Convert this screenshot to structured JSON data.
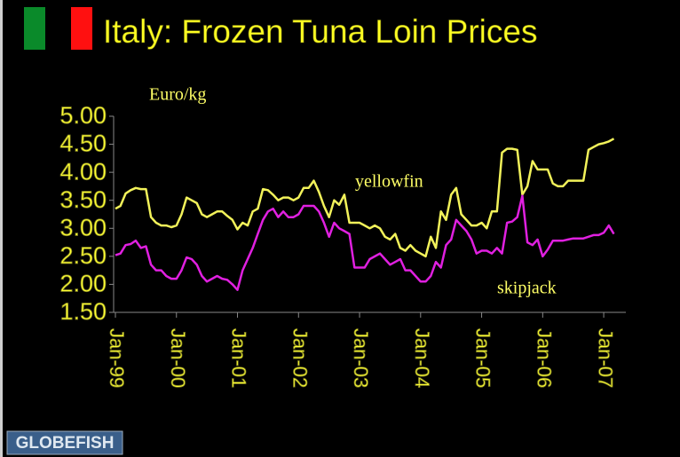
{
  "chart_data": {
    "type": "line",
    "title": "Italy: Frozen Tuna Loin Prices",
    "y_axis_label": "Euro/kg",
    "logo": "GLOBEFISH",
    "categories": [
      "Jan-99",
      null,
      null,
      null,
      null,
      null,
      null,
      null,
      null,
      null,
      null,
      null,
      "Jan-00",
      null,
      null,
      null,
      null,
      null,
      null,
      null,
      null,
      null,
      null,
      null,
      "Jan-01",
      null,
      null,
      null,
      null,
      null,
      null,
      null,
      null,
      null,
      null,
      null,
      "Jan-02",
      null,
      null,
      null,
      null,
      null,
      null,
      null,
      null,
      null,
      null,
      null,
      "Jan-03",
      null,
      null,
      null,
      null,
      null,
      null,
      null,
      null,
      null,
      null,
      null,
      "Jan-04",
      null,
      null,
      null,
      null,
      null,
      null,
      null,
      null,
      null,
      null,
      null,
      "Jan-05",
      null,
      null,
      null,
      null,
      null,
      null,
      null,
      null,
      null,
      null,
      null,
      "Jan-06",
      null,
      null,
      null,
      null,
      null,
      null,
      null,
      null,
      null,
      null,
      null,
      "Jan-07",
      null,
      null
    ],
    "series": [
      {
        "name": "yellowfin",
        "color": "#f2f25a",
        "values": [
          3.35,
          3.4,
          3.62,
          3.68,
          3.72,
          3.7,
          3.7,
          3.2,
          3.1,
          3.05,
          3.05,
          3.02,
          3.05,
          3.25,
          3.55,
          3.5,
          3.45,
          3.25,
          3.2,
          3.25,
          3.3,
          3.3,
          3.22,
          3.15,
          2.98,
          3.1,
          3.05,
          3.3,
          3.35,
          3.7,
          3.68,
          3.6,
          3.5,
          3.55,
          3.55,
          3.5,
          3.55,
          3.72,
          3.72,
          3.85,
          3.65,
          3.4,
          3.2,
          3.5,
          3.42,
          3.6,
          3.1,
          3.1,
          3.1,
          3.05,
          3.0,
          3.05,
          3.0,
          2.85,
          2.8,
          2.9,
          2.65,
          2.6,
          2.7,
          2.6,
          2.55,
          2.5,
          2.85,
          2.65,
          3.3,
          3.15,
          3.6,
          3.72,
          3.25,
          3.15,
          3.05,
          3.05,
          3.1,
          3.0,
          3.3,
          3.3,
          4.35,
          4.42,
          4.42,
          4.4,
          3.6,
          3.75,
          4.2,
          4.05,
          4.05,
          4.05,
          3.8,
          3.75,
          3.75,
          3.85,
          3.85,
          3.85,
          3.85,
          4.4,
          4.45,
          4.5,
          4.52,
          4.55,
          4.6
        ]
      },
      {
        "name": "skipjack",
        "color": "#e020e0",
        "values": [
          2.52,
          2.55,
          2.7,
          2.72,
          2.78,
          2.65,
          2.68,
          2.35,
          2.25,
          2.25,
          2.15,
          2.1,
          2.1,
          2.25,
          2.48,
          2.45,
          2.35,
          2.15,
          2.05,
          2.1,
          2.15,
          2.1,
          2.08,
          2.0,
          1.9,
          2.25,
          2.45,
          2.65,
          2.9,
          3.15,
          3.3,
          3.35,
          3.2,
          3.3,
          3.2,
          3.2,
          3.25,
          3.4,
          3.4,
          3.4,
          3.3,
          3.1,
          2.85,
          3.1,
          3.0,
          2.95,
          2.9,
          2.3,
          2.3,
          2.3,
          2.45,
          2.5,
          2.55,
          2.45,
          2.35,
          2.4,
          2.45,
          2.25,
          2.25,
          2.15,
          2.05,
          2.05,
          2.15,
          2.4,
          2.3,
          2.7,
          2.8,
          3.15,
          3.05,
          2.95,
          2.8,
          2.55,
          2.6,
          2.6,
          2.55,
          2.65,
          2.55,
          3.1,
          3.12,
          3.2,
          3.58,
          2.75,
          2.7,
          2.8,
          2.5,
          2.62,
          2.78,
          2.78,
          2.78,
          2.8,
          2.82,
          2.82,
          2.82,
          2.85,
          2.88,
          2.88,
          2.92,
          3.05,
          2.9
        ]
      }
    ],
    "ylim": [
      1.5,
      5
    ],
    "yticks": [
      {
        "value": 1.5,
        "label": "1.50"
      },
      {
        "value": 2,
        "label": "2.00"
      },
      {
        "value": 2.5,
        "label": "2.50"
      },
      {
        "value": 3,
        "label": "3.00"
      },
      {
        "value": 3.5,
        "label": "3.50"
      },
      {
        "value": 4,
        "label": "4.00"
      },
      {
        "value": 4.5,
        "label": "4.50"
      },
      {
        "value": 5,
        "label": "5.00"
      }
    ],
    "grid": false
  }
}
